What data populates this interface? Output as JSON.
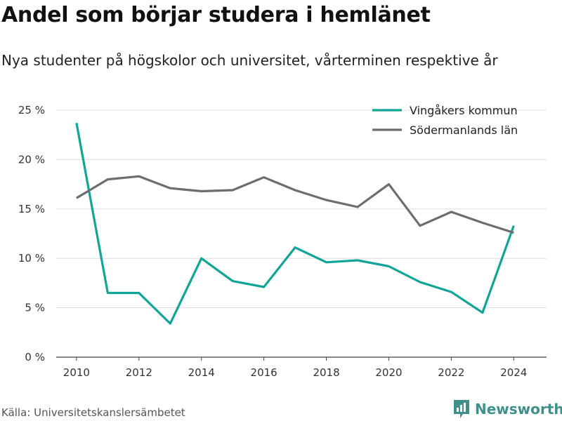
{
  "title": "Andel som börjar studera i hemlänet",
  "subtitle": "Nya studenter på högskolor och universitet, vårterminen respektive år",
  "source": "Källa: Universitetskanslersämbetet",
  "brand": {
    "name": "Newsworthy",
    "icon": "newsworthy-logo-icon",
    "color": "#3f8f8a"
  },
  "chart_data": {
    "type": "line",
    "title": "Andel som börjar studera i hemlänet",
    "subtitle": "Nya studenter på högskolor och universitet, vårterminen respektive år",
    "x": [
      2010,
      2011,
      2012,
      2013,
      2014,
      2015,
      2016,
      2017,
      2018,
      2019,
      2020,
      2021,
      2022,
      2023,
      2024
    ],
    "xticks": [
      2010,
      2012,
      2014,
      2016,
      2018,
      2020,
      2022,
      2024
    ],
    "yticks": [
      0,
      5,
      10,
      15,
      20,
      25
    ],
    "ytick_labels": [
      "0 %",
      "5 %",
      "10 %",
      "15 %",
      "20 %",
      "25 %"
    ],
    "ylim": [
      0,
      25
    ],
    "grid": true,
    "legend_position": "top-right",
    "series": [
      {
        "name": "Vingåkers kommun",
        "color": "#10a596",
        "values": [
          23.7,
          6.5,
          6.5,
          3.4,
          10.0,
          7.7,
          7.1,
          11.1,
          9.6,
          9.8,
          9.2,
          7.6,
          6.6,
          4.5,
          13.3
        ]
      },
      {
        "name": "Södermanlands län",
        "color": "#6d6c70",
        "values": [
          16.1,
          18.0,
          18.3,
          17.1,
          16.8,
          16.9,
          18.2,
          16.9,
          15.9,
          15.2,
          17.5,
          13.3,
          14.7,
          13.6,
          12.6
        ]
      }
    ]
  }
}
